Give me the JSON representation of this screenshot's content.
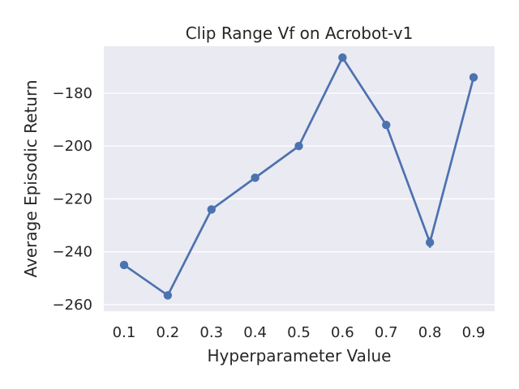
{
  "chart_data": {
    "type": "line",
    "title": "Clip Range Vf on Acrobot-v1",
    "xlabel": "Hyperparameter Value",
    "ylabel": "Average Episodic Return",
    "categories": [
      "0.1",
      "0.2",
      "0.3",
      "0.4",
      "0.5",
      "0.6",
      "0.7",
      "0.8",
      "0.9"
    ],
    "series": [
      {
        "values": [
          -245,
          -256.5,
          -224,
          -212,
          -200,
          -166.5,
          -192,
          -236.5,
          -174
        ],
        "error_low": [
          -245,
          -256.5,
          -224,
          -212,
          -200,
          -166.5,
          -192,
          -238.5,
          -174
        ],
        "error_high": [
          -245,
          -256.5,
          -224,
          -212,
          -200,
          -166.5,
          -192,
          -234.5,
          -174
        ]
      }
    ],
    "yticks": [
      -260,
      -240,
      -220,
      -200,
      -180
    ],
    "ytick_labels": [
      "−260",
      "−240",
      "−220",
      "−200",
      "−180"
    ],
    "ylim": [
      -262.5,
      -162.2
    ],
    "grid": true,
    "colors": {
      "line": "#4c72b0",
      "background": "#eaeaf2",
      "grid": "#ffffff"
    }
  }
}
